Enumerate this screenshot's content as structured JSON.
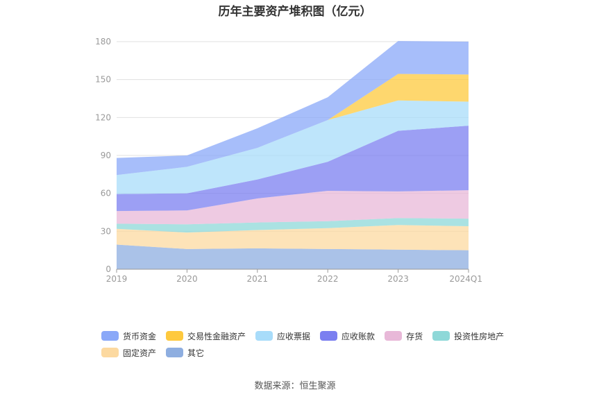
{
  "chart_data": {
    "type": "area",
    "stacked": true,
    "title": "历年主要资产堆积图（亿元）",
    "categories": [
      "2019",
      "2020",
      "2021",
      "2022",
      "2023",
      "2024Q1"
    ],
    "ylim": [
      0,
      180
    ],
    "yticks": [
      0,
      30,
      60,
      90,
      120,
      150,
      180
    ],
    "grid": true,
    "legend_position": "bottom",
    "series": [
      {
        "name": "其它",
        "color": "#8eaee0",
        "values": [
          19.5,
          16,
          16.5,
          16,
          15.5,
          15
        ]
      },
      {
        "name": "固定资产",
        "color": "#fcd9a0",
        "values": [
          12.5,
          13,
          14.5,
          16.5,
          19.5,
          19
        ]
      },
      {
        "name": "投资性房地产",
        "color": "#8ed8d8",
        "values": [
          4,
          6.5,
          6,
          5.5,
          5.5,
          6
        ]
      },
      {
        "name": "存货",
        "color": "#e8b8d8",
        "values": [
          10,
          11,
          19,
          24,
          21,
          22.5
        ]
      },
      {
        "name": "应收账款",
        "color": "#7b7ff0",
        "values": [
          13.5,
          13.5,
          15,
          23,
          48,
          51
        ]
      },
      {
        "name": "应收票据",
        "color": "#a8dcfa",
        "values": [
          15,
          21,
          25,
          33,
          24,
          19
        ]
      },
      {
        "name": "交易性金融资产",
        "color": "#fec93e",
        "values": [
          0,
          0,
          0,
          0,
          21,
          21.5
        ]
      },
      {
        "name": "货币资金",
        "color": "#8aa8f8",
        "values": [
          13.5,
          9,
          15.5,
          18,
          26,
          26
        ]
      }
    ]
  },
  "legend": [
    {
      "label": "货币资金",
      "color": "#8aa8f8"
    },
    {
      "label": "交易性金融资产",
      "color": "#fec93e"
    },
    {
      "label": "应收票据",
      "color": "#a8dcfa"
    },
    {
      "label": "应收账款",
      "color": "#7b7ff0"
    },
    {
      "label": "存货",
      "color": "#e8b8d8"
    },
    {
      "label": "投资性房地产",
      "color": "#8ed8d8"
    },
    {
      "label": "固定资产",
      "color": "#fcd9a0"
    },
    {
      "label": "其它",
      "color": "#8eaee0"
    }
  ],
  "source": "数据来源：恒生聚源"
}
